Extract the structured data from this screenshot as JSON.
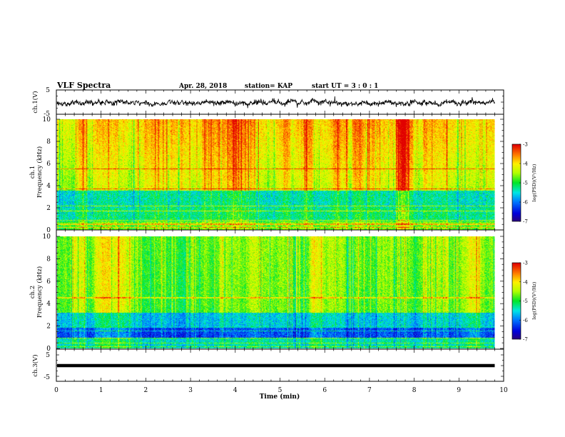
{
  "header": {
    "title": "VLF Spectra",
    "date": "Apr. 28, 2018",
    "station": "station= KAP",
    "start": "start  UT =   3 : 0  : 1"
  },
  "chart_data": [
    {
      "type": "line",
      "panel": "ch1-waveform",
      "ylabel": "ch.1(V)",
      "ylim": [
        -5,
        5
      ],
      "yticks": [
        "5",
        "-5"
      ],
      "xlim": [
        0,
        10
      ],
      "x_end": 9.8
    },
    {
      "type": "heatmap",
      "panel": "ch1-spectrogram",
      "ylabel": "ch.1\nFrequency (kHz)",
      "ylabel_lines": [
        "ch.1",
        "Frequency (kHz)"
      ],
      "ylim": [
        0,
        10
      ],
      "yticks": [
        "0",
        "2",
        "4",
        "6",
        "8",
        "10"
      ],
      "xlim": [
        0,
        10
      ],
      "x_end": 9.8,
      "colorbar": {
        "range": [
          -7,
          -3
        ],
        "ticks": [
          "-3",
          "-4",
          "-5",
          "-6",
          "-7"
        ],
        "label": "log(PSD)(V²/Hz)"
      }
    },
    {
      "type": "heatmap",
      "panel": "ch2-spectrogram",
      "ylabel": "ch.2\nFrequency (kHz)",
      "ylabel_lines": [
        "ch.2",
        "Frequency (kHz)"
      ],
      "ylim": [
        0,
        10
      ],
      "yticks": [
        "0",
        "2",
        "4",
        "6",
        "8",
        "10"
      ],
      "xlim": [
        0,
        10
      ],
      "x_end": 9.8,
      "colorbar": {
        "range": [
          -7,
          -3
        ],
        "ticks": [
          "-3",
          "-4",
          "-5",
          "-6",
          "-7"
        ],
        "label": "log(PSD)(V²/Hz)"
      }
    },
    {
      "type": "line",
      "panel": "ch3-waveform",
      "ylabel": "ch.3(V)",
      "ylim": [
        -5,
        5
      ],
      "yticks": [
        "5",
        "-5"
      ],
      "xlim": [
        0,
        10
      ],
      "x_end": 9.8,
      "level": 0
    }
  ],
  "xaxis": {
    "label": "Time (min)",
    "ticks": [
      "0",
      "1",
      "2",
      "3",
      "4",
      "5",
      "6",
      "7",
      "8",
      "9",
      "10"
    ]
  }
}
